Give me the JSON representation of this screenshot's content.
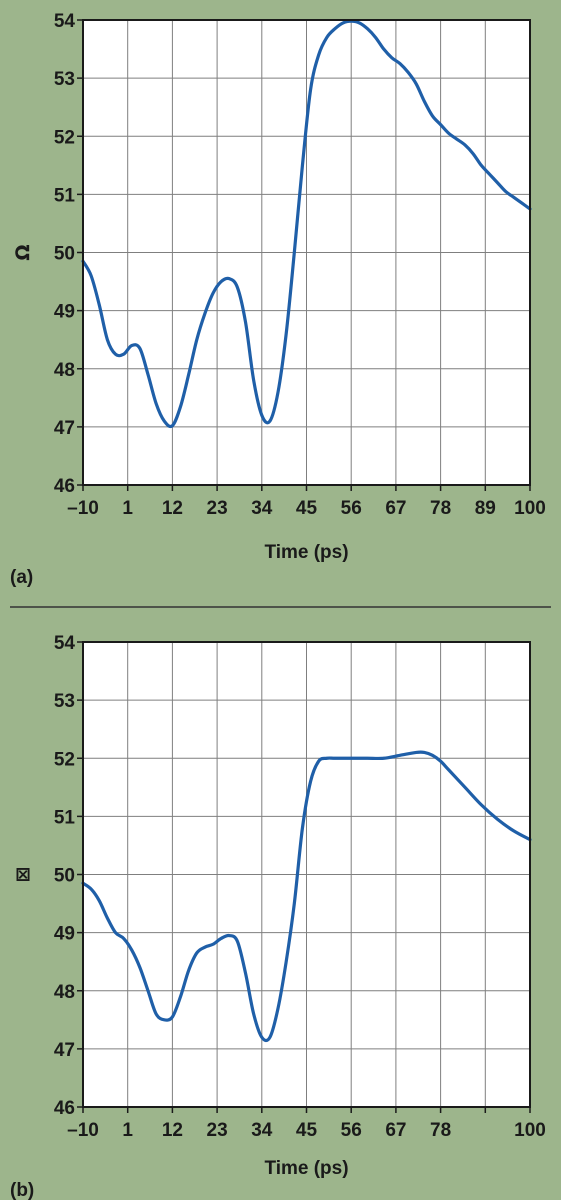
{
  "colors": {
    "background": "#9db58c",
    "plot_fill": "#ffffff",
    "grid": "#7f7f7f",
    "frame": "#1a1a1a",
    "line": "#1f5fa8",
    "divider": "#333333"
  },
  "chart_data": [
    {
      "type": "line",
      "panel_label": "(a)",
      "xlabel": "Time (ps)",
      "ylabel": "Ω",
      "xlim": [
        -10,
        100
      ],
      "ylim": [
        46,
        54
      ],
      "grid": true,
      "x_ticks": [
        -10,
        1,
        12,
        23,
        34,
        45,
        56,
        67,
        78,
        89,
        100
      ],
      "x_tick_labels": [
        "–10",
        "1",
        "12",
        "23",
        "34",
        "45",
        "56",
        "67",
        "78",
        "89",
        "100"
      ],
      "y_ticks": [
        46,
        47,
        48,
        49,
        50,
        51,
        52,
        53,
        54
      ],
      "y_tick_labels": [
        "46",
        "47",
        "48",
        "49",
        "50",
        "51",
        "52",
        "53",
        "54"
      ],
      "series": [
        {
          "x": [
            -10,
            -8,
            -6,
            -4,
            -2,
            0,
            2,
            4,
            6,
            8,
            10,
            12,
            14,
            16,
            18,
            20,
            22,
            24,
            26,
            28,
            30,
            32,
            34,
            36,
            38,
            40,
            42,
            44,
            46,
            48,
            50,
            52,
            54,
            56,
            58,
            60,
            62,
            64,
            66,
            68,
            70,
            72,
            74,
            76,
            78,
            80,
            82,
            84,
            86,
            88,
            90,
            92,
            94,
            96,
            98,
            100
          ],
          "y": [
            49.85,
            49.6,
            49.1,
            48.5,
            48.25,
            48.25,
            48.4,
            48.35,
            47.9,
            47.4,
            47.1,
            47.02,
            47.35,
            47.9,
            48.5,
            48.95,
            49.3,
            49.5,
            49.55,
            49.4,
            48.8,
            47.8,
            47.2,
            47.1,
            47.6,
            48.6,
            50.0,
            51.5,
            52.8,
            53.4,
            53.7,
            53.85,
            53.95,
            53.98,
            53.95,
            53.85,
            53.7,
            53.5,
            53.35,
            53.25,
            53.1,
            52.9,
            52.6,
            52.35,
            52.2,
            52.05,
            51.95,
            51.85,
            51.7,
            51.5,
            51.35,
            51.2,
            51.05,
            50.95,
            50.85,
            50.75
          ]
        }
      ]
    },
    {
      "type": "line",
      "panel_label": "(b)",
      "xlabel": "Time (ps)",
      "ylabel": "⊠",
      "xlim": [
        -10,
        100
      ],
      "ylim": [
        46,
        54
      ],
      "grid": true,
      "x_ticks": [
        -10,
        1,
        12,
        23,
        34,
        45,
        56,
        67,
        78,
        89,
        100
      ],
      "x_tick_labels": [
        "–10",
        "1",
        "12",
        "23",
        "34",
        "45",
        "56",
        "67",
        "78",
        "",
        "100"
      ],
      "y_ticks": [
        46,
        47,
        48,
        49,
        50,
        51,
        52,
        53,
        54
      ],
      "y_tick_labels": [
        "46",
        "47",
        "48",
        "49",
        "50",
        "51",
        "52",
        "53",
        "54"
      ],
      "series": [
        {
          "x": [
            -10,
            -8,
            -6,
            -4,
            -2,
            0,
            2,
            4,
            6,
            8,
            10,
            12,
            14,
            16,
            18,
            20,
            22,
            24,
            26,
            28,
            30,
            32,
            34,
            36,
            38,
            40,
            42,
            44,
            46,
            48,
            50,
            52,
            56,
            60,
            64,
            68,
            72,
            74,
            76,
            78,
            80,
            84,
            88,
            92,
            96,
            100
          ],
          "y": [
            49.85,
            49.75,
            49.55,
            49.25,
            49.0,
            48.9,
            48.7,
            48.4,
            48.0,
            47.6,
            47.5,
            47.55,
            47.9,
            48.35,
            48.65,
            48.75,
            48.8,
            48.9,
            48.95,
            48.85,
            48.3,
            47.6,
            47.2,
            47.2,
            47.7,
            48.5,
            49.5,
            50.8,
            51.6,
            51.95,
            52.0,
            52.0,
            52.0,
            52.0,
            52.0,
            52.05,
            52.1,
            52.1,
            52.05,
            51.95,
            51.8,
            51.5,
            51.2,
            50.95,
            50.75,
            50.6
          ]
        }
      ]
    }
  ]
}
